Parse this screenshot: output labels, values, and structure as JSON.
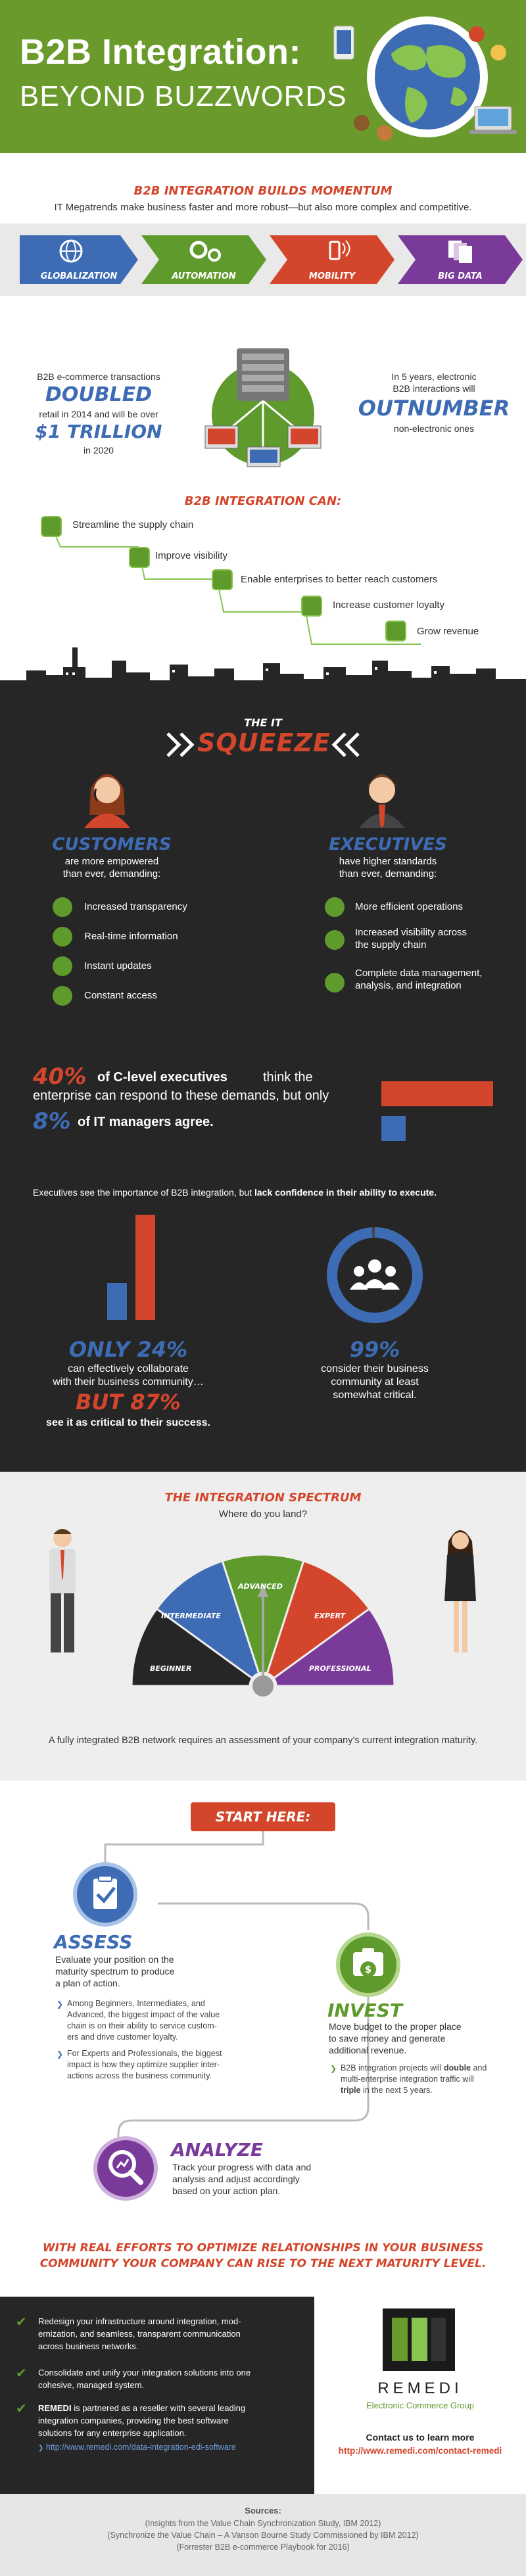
{
  "header": {
    "title": "B2B Integration:",
    "subtitle": "BEYOND BUZZWORDS"
  },
  "momentum": {
    "heading": "B2B INTEGRATION BUILDS MOMENTUM",
    "tagline": "IT Megatrends make business faster and more robust—but also more complex and competitive.",
    "trends": [
      {
        "label": "GLOBALIZATION",
        "color": "#3d6cb4",
        "icon": "globe-icon"
      },
      {
        "label": "AUTOMATION",
        "color": "#5f9a2c",
        "icon": "gears-icon"
      },
      {
        "label": "MOBILITY",
        "color": "#d4462b",
        "icon": "mobile-wifi-icon"
      },
      {
        "label": "BIG DATA",
        "color": "#7a3a9a",
        "icon": "documents-icon"
      }
    ]
  },
  "stats1": {
    "left_line1": "B2B e-commerce transactions",
    "left_big1": "DOUBLED",
    "left_line2": "retail in 2014 and will be over",
    "left_big2": "$1 TRILLION",
    "left_line3": "in 2020",
    "right_line1": "In 5 years, electronic",
    "right_line2": "B2B interactions will",
    "right_big": "OUTNUMBER",
    "right_line3": "non-electronic ones"
  },
  "can": {
    "heading": "B2B INTEGRATION CAN:",
    "items": [
      "Streamline the supply chain",
      "Improve visibility",
      "Enable enterprises to better reach customers",
      "Increase customer loyalty",
      "Grow revenue"
    ]
  },
  "squeeze": {
    "heading_small": "THE IT",
    "heading_big": "SQUEEZE",
    "customers": {
      "title": "CUSTOMERS",
      "line1": "are more empowered",
      "line2": "than ever, demanding:",
      "items": [
        "Increased transparency",
        "Real-time information",
        "Instant updates",
        "Constant access"
      ]
    },
    "executives": {
      "title": "EXECUTIVES",
      "line1": "have higher standards",
      "line2": "than ever, demanding:",
      "items": [
        "More efficient operations",
        "Increased visibility across",
        "the supply chain",
        "Complete data management,",
        "analysis, and integration"
      ]
    },
    "pct1": "40%",
    "pct1_text": "of C-level executives",
    "pct1_rest": "think the",
    "pct1_line2": "enterprise can respond to these demands, but only",
    "pct2": "8%",
    "pct2_text": "of IT managers agree.",
    "bar_values": [
      40,
      8
    ],
    "confidence_plain": "Executives see the importance of B2B integration, but",
    "confidence_bold": "lack confidence in their ability to execute.",
    "only_pct": "ONLY 24%",
    "only_line1": "can effectively collaborate",
    "only_line2": "with their business community…",
    "but_pct": "BUT 87%",
    "but_line": "see it as critical to their success.",
    "column_values": [
      24,
      87
    ],
    "ring_pct": "99%",
    "ring_value": 99,
    "ring_line1": "consider their business",
    "ring_line2": "community at least",
    "ring_line3": "somewhat critical."
  },
  "spectrum": {
    "heading": "THE INTEGRATION SPECTRUM",
    "question": "Where do you land?",
    "segments": [
      {
        "label": "BEGINNER",
        "color": "#262627"
      },
      {
        "label": "INTERMEDIATE",
        "color": "#3d6cb4"
      },
      {
        "label": "ADVANCED",
        "color": "#5f9a2c"
      },
      {
        "label": "EXPERT",
        "color": "#d4462b"
      },
      {
        "label": "PROFESSIONAL",
        "color": "#7a3a9a"
      }
    ],
    "note": "A fully integrated B2B network requires an assessment of your company’s current integration maturity."
  },
  "steps": {
    "start": "START HERE:",
    "assess": {
      "title": "ASSESS",
      "text1": "Evaluate your position on the",
      "text2": "maturity spectrum to produce",
      "text3": "a plan of action.",
      "b1_1": "Among Beginners, Intermediates, and",
      "b1_2": "Advanced, the biggest impact of the value",
      "b1_3": "chain is on their ability to service custom-",
      "b1_4": "ers and drive customer loyalty.",
      "b2_1": "For Experts and Professionals, the biggest",
      "b2_2": "impact is how they optimize supplier inter-",
      "b2_3": "actions across the business community."
    },
    "invest": {
      "title": "INVEST",
      "text1": "Move budget to the proper place",
      "text2": "to save money and generate",
      "text3": "additional revenue.",
      "b1_pre": "B2B integration projects will",
      "b1_bold1": "double",
      "b1_and": "and",
      "b1_line2": "multi-enterprise integration traffic will",
      "b1_bold2": "triple",
      "b1_end": "in the next 5 years."
    },
    "analyze": {
      "title": "ANALYZE",
      "text1": "Track your progress with data and",
      "text2": "analysis and adjust accordingly",
      "text3": "based on your action plan."
    },
    "closing1": "WITH REAL EFFORTS TO OPTIMIZE RELATIONSHIPS IN YOUR BUSINESS",
    "closing2": "COMMUNITY YOUR COMPANY CAN RISE TO THE NEXT MATURITY LEVEL."
  },
  "footer": {
    "items": [
      [
        "Redesign your infrastructure around integration, mod-",
        "ernization, and seamless, transparent communication",
        "across business networks."
      ],
      [
        "Consolidate and unify your integration solutions into one",
        "cohesive, managed system."
      ]
    ],
    "remedi_bold": "REMEDI",
    "remedi_rest": "is partnered as a reseller with several leading",
    "remedi_line2": "integration companies, providing the best software",
    "remedi_line3": "solutions for any enterprise application.",
    "remedi_link": "http://www.remedi.com/data-integration-edi-software",
    "brand": "REMEDI",
    "brand_sub": "Electronic Commerce Group",
    "contact": "Contact us to learn more",
    "contact_url": "http://www.remedi.com/contact-remedi"
  },
  "sources": {
    "heading": "Sources:",
    "lines": [
      "(Insights from the Value Chain Synchronization Study, IBM 2012)",
      "(Synchronize the Value Chain – A Vanson Bourne Study Commissioned by IBM 2012)",
      "(Forrester B2B e-commerce Playbook for 2016)"
    ]
  }
}
